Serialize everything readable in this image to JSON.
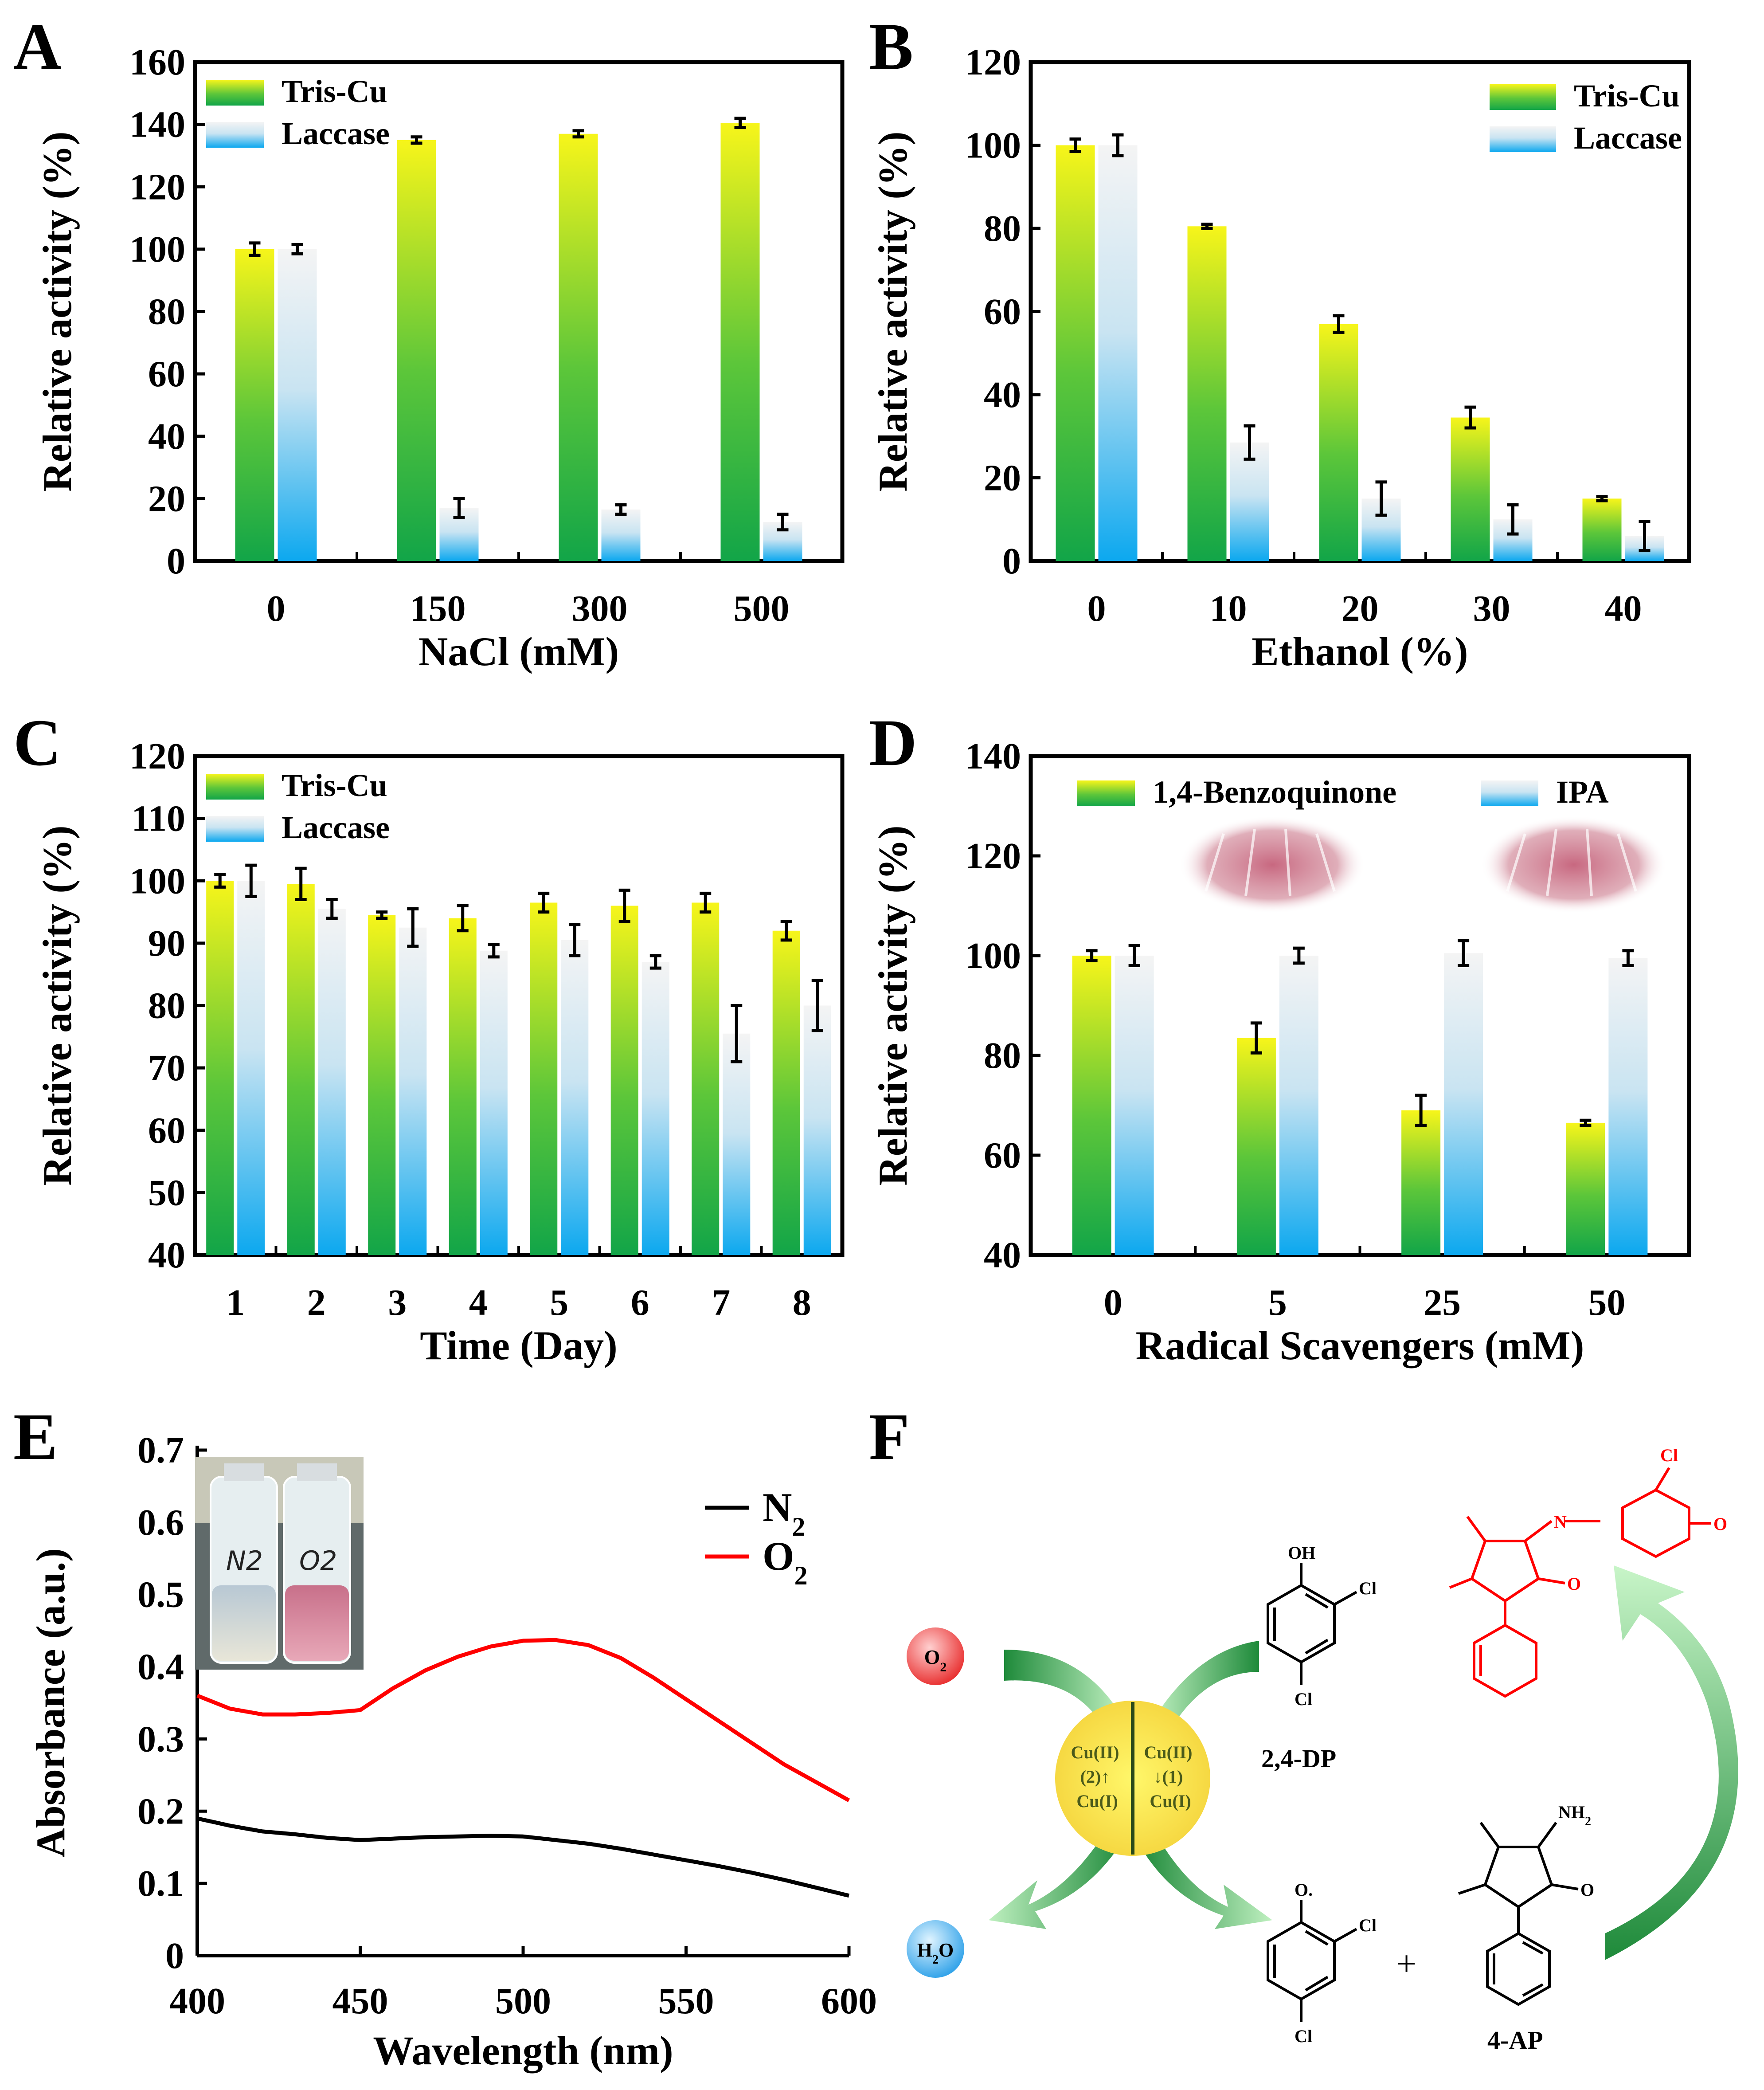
{
  "colors": {
    "trisTop": "#f5f21a",
    "trisBottom": "#16a84a",
    "lacTop": "#f2f2f2",
    "lacBottom": "#0faaf0",
    "n2": "#000000",
    "o2": "#ff0000"
  },
  "panels": [
    "A",
    "B",
    "C",
    "D",
    "E",
    "F"
  ],
  "chart_data": [
    {
      "id": "A",
      "type": "bar",
      "xlabel": "NaCl (mM)",
      "ylabel": "Relative activity (%)",
      "categories": [
        "0",
        "150",
        "300",
        "500"
      ],
      "ylim": [
        0,
        160
      ],
      "yticks": [
        "0",
        "20",
        "40",
        "60",
        "80",
        "100",
        "120",
        "140",
        "160"
      ],
      "legend": [
        "Tris-Cu",
        "Laccase"
      ],
      "legend_position": "top-left",
      "series": [
        {
          "name": "Tris-Cu",
          "values": [
            100,
            135,
            137,
            140.5
          ],
          "errors": [
            2,
            1,
            1,
            1.5
          ]
        },
        {
          "name": "Laccase",
          "values": [
            100,
            17,
            16.5,
            12.5
          ],
          "errors": [
            1.5,
            3,
            1.5,
            2.5
          ]
        }
      ]
    },
    {
      "id": "B",
      "type": "bar",
      "xlabel": "Ethanol (%)",
      "ylabel": "Relative activity (%)",
      "categories": [
        "0",
        "10",
        "20",
        "30",
        "40"
      ],
      "ylim": [
        0,
        120
      ],
      "yticks": [
        "0",
        "20",
        "40",
        "60",
        "80",
        "100",
        "120"
      ],
      "legend": [
        "Tris-Cu",
        "Laccase"
      ],
      "legend_position": "top-right",
      "series": [
        {
          "name": "Tris-Cu",
          "values": [
            100,
            80.5,
            57,
            34.5,
            15
          ],
          "errors": [
            1.5,
            0.5,
            2,
            2.5,
            0.5
          ]
        },
        {
          "name": "Laccase",
          "values": [
            100,
            28.5,
            15,
            10,
            6
          ],
          "errors": [
            2.5,
            4,
            4,
            3.5,
            3.5
          ]
        }
      ]
    },
    {
      "id": "C",
      "type": "bar",
      "xlabel": "Time (Day)",
      "ylabel": "Relative activity (%)",
      "categories": [
        "1",
        "2",
        "3",
        "4",
        "5",
        "6",
        "7",
        "8"
      ],
      "ylim": [
        40,
        120
      ],
      "yticks": [
        "40",
        "50",
        "60",
        "70",
        "80",
        "90",
        "100",
        "110",
        "120"
      ],
      "legend": [
        "Tris-Cu",
        "Laccase"
      ],
      "legend_position": "top-left",
      "series": [
        {
          "name": "Tris-Cu",
          "values": [
            100,
            99.5,
            94.5,
            94,
            96.5,
            96,
            96.5,
            92
          ],
          "errors": [
            1,
            2.5,
            0.5,
            2,
            1.5,
            2.5,
            1.5,
            1.5
          ]
        },
        {
          "name": "Laccase",
          "values": [
            100,
            95.5,
            92.5,
            88.8,
            90.5,
            87,
            75.5,
            80
          ],
          "errors": [
            2.5,
            1.5,
            3,
            1,
            2.5,
            1,
            4.5,
            4
          ]
        }
      ]
    },
    {
      "id": "D",
      "type": "bar",
      "xlabel": "Radical Scavengers (mM)",
      "ylabel": "Relative activity (%)",
      "categories": [
        "0",
        "5",
        "25",
        "50"
      ],
      "ylim": [
        40,
        140
      ],
      "yticks": [
        "40",
        "60",
        "80",
        "100",
        "120",
        "140"
      ],
      "legend": [
        "1,4-Benzoquinone",
        "IPA"
      ],
      "legend_position": "top",
      "series": [
        {
          "name": "1,4-Benzoquinone",
          "values": [
            100,
            83.5,
            69,
            66.5
          ],
          "errors": [
            1,
            3,
            3,
            0.5
          ]
        },
        {
          "name": "IPA",
          "values": [
            100,
            100,
            100.5,
            99.5
          ],
          "errors": [
            2,
            1.5,
            2.5,
            1.5
          ]
        }
      ]
    },
    {
      "id": "E",
      "type": "line",
      "xlabel": "Wavelength (nm)",
      "ylabel": "Absorbance (a.u.)",
      "xlim": [
        400,
        600
      ],
      "ylim": [
        0,
        0.7
      ],
      "xticks": [
        "400",
        "450",
        "500",
        "550",
        "600"
      ],
      "yticks": [
        "0",
        "0.1",
        "0.2",
        "0.3",
        "0.4",
        "0.5",
        "0.6",
        "0.7"
      ],
      "legend_position": "top-right",
      "series": [
        {
          "name": "N2",
          "x": [
            400,
            410,
            420,
            430,
            440,
            450,
            460,
            470,
            480,
            490,
            500,
            510,
            520,
            530,
            540,
            550,
            560,
            570,
            580,
            590,
            600
          ],
          "values": [
            0.19,
            0.18,
            0.172,
            0.168,
            0.163,
            0.16,
            0.162,
            0.164,
            0.165,
            0.166,
            0.165,
            0.16,
            0.155,
            0.148,
            0.14,
            0.132,
            0.124,
            0.115,
            0.105,
            0.094,
            0.083
          ]
        },
        {
          "name": "O2",
          "x": [
            400,
            410,
            420,
            430,
            440,
            450,
            460,
            470,
            480,
            490,
            500,
            510,
            520,
            530,
            540,
            550,
            560,
            570,
            580,
            590,
            600
          ],
          "values": [
            0.36,
            0.342,
            0.334,
            0.334,
            0.336,
            0.34,
            0.37,
            0.395,
            0.414,
            0.428,
            0.436,
            0.437,
            0.43,
            0.412,
            0.385,
            0.355,
            0.325,
            0.295,
            0.265,
            0.24,
            0.215
          ]
        }
      ]
    }
  ],
  "inset": {
    "vial1": "N2",
    "vial2": "O2"
  },
  "diagram": {
    "o2": "O",
    "o2_sub": "2",
    "h2o_a": "H",
    "h2o_sub": "2",
    "h2o_b": "O",
    "cu_left": [
      "Cu(II)",
      "(2)↑",
      "Cu(I)"
    ],
    "cu_right": [
      "Cu(II)",
      "↓(1)",
      "Cu(I)"
    ],
    "dp_label": "2,4-DP",
    "ap_label": "4-AP",
    "oh": "OH",
    "cl": "Cl",
    "o_radical": "O.",
    "nh2": "NH",
    "nh2_sub": "2",
    "n": "N",
    "o": "O",
    "plus": "+"
  }
}
